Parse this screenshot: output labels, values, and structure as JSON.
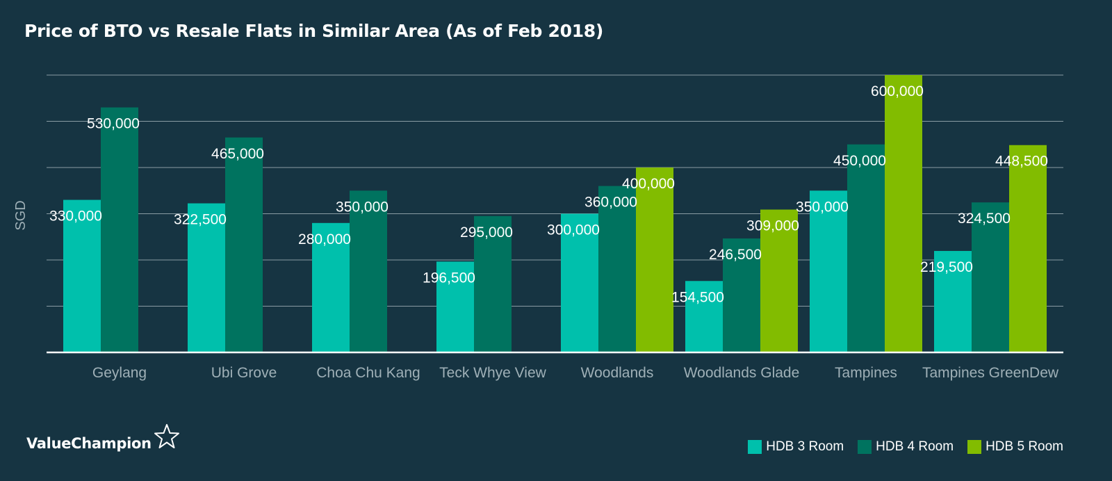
{
  "brand": {
    "name": "ValueChampion",
    "icon": "star-outline-icon"
  },
  "colors": {
    "background": "#163442",
    "grid": "#8a9ca4",
    "hdb3": "#00c0ac",
    "hdb4": "#00735f",
    "hdb5": "#82bc00"
  },
  "chart_data": {
    "type": "bar",
    "title": "Price of BTO vs Resale Flats in Similar Area (As of Feb 2018)",
    "xlabel": "",
    "ylabel": "SGD",
    "ylim": [
      0,
      600000
    ],
    "grid": true,
    "legend_position": "bottom-right",
    "categories": [
      "Geylang",
      "Ubi Grove",
      "Choa Chu Kang",
      "Teck Whye View",
      "Woodlands",
      "Woodlands Glade",
      "Tampines",
      "Tampines GreenDew"
    ],
    "series": [
      {
        "name": "HDB 3 Room",
        "color": "#00c0ac",
        "values": [
          330000,
          322500,
          280000,
          196500,
          300000,
          154500,
          350000,
          219500
        ],
        "labels": [
          "330,000",
          "322,500",
          "280,000",
          "196,500",
          "300,000",
          "154,500",
          "350,000",
          "219,500"
        ]
      },
      {
        "name": "HDB 4 Room",
        "color": "#00735f",
        "values": [
          530000,
          465000,
          350000,
          295000,
          360000,
          246500,
          450000,
          324500
        ],
        "labels": [
          "530,000",
          "465,000",
          "350,000",
          "295,000",
          "360,000",
          "246,500",
          "450,000",
          "324,500"
        ]
      },
      {
        "name": "HDB 5 Room",
        "color": "#82bc00",
        "values": [
          null,
          null,
          null,
          null,
          400000,
          309000,
          600000,
          448500
        ],
        "labels": [
          "",
          "",
          "",
          "",
          "400,000",
          "309,000",
          "600,000",
          "448,500"
        ]
      }
    ]
  }
}
